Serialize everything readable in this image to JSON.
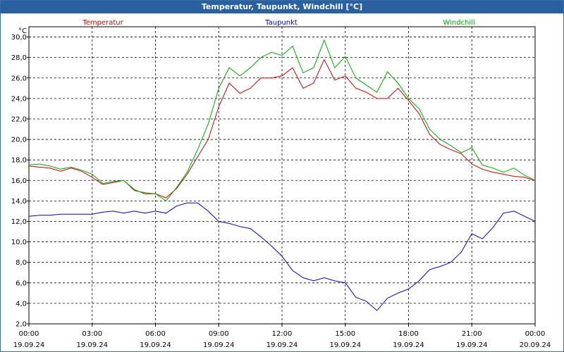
{
  "window": {
    "title": "Temperatur, Taupunkt, Windchill [°C]"
  },
  "chart_data": {
    "type": "line",
    "title": "Temperatur, Taupunkt, Windchill [°C]",
    "ylabel": "°C",
    "ylim": [
      2,
      31
    ],
    "xlim": [
      0,
      24
    ],
    "yticks": [
      2,
      4,
      6,
      8,
      10,
      12,
      14,
      16,
      18,
      20,
      22,
      24,
      26,
      28,
      30
    ],
    "ytick_labels": [
      "2,0",
      "4,0",
      "6,0",
      "8,0",
      "10,0",
      "12,0",
      "14,0",
      "16,0",
      "18,0",
      "20,0",
      "22,0",
      "24,0",
      "26,0",
      "28,0",
      "30,0"
    ],
    "xticks": [
      0,
      3,
      6,
      9,
      12,
      15,
      18,
      21,
      24
    ],
    "xtick_time": [
      "00:00",
      "03:00",
      "06:00",
      "09:00",
      "12:00",
      "15:00",
      "18:00",
      "21:00",
      "00:00"
    ],
    "xtick_date": [
      "19.09.24",
      "19.09.24",
      "19.09.24",
      "19.09.24",
      "19.09.24",
      "19.09.24",
      "19.09.24",
      "19.09.24",
      "20.09.24"
    ],
    "grid": true,
    "series": [
      {
        "name": "Temperatur",
        "color": "#cc0000",
        "x": [
          0,
          0.5,
          1,
          1.5,
          2,
          2.5,
          3,
          3.5,
          4,
          4.5,
          5,
          5.5,
          6,
          6.5,
          7,
          7.5,
          8,
          8.5,
          9,
          9.5,
          10,
          10.5,
          11,
          11.5,
          12,
          12.5,
          13,
          13.5,
          14,
          14.5,
          15,
          15.5,
          16,
          16.5,
          17,
          17.5,
          18,
          18.5,
          19,
          19.5,
          20,
          20.5,
          21,
          21.5,
          22,
          22.5,
          23,
          23.5,
          24
        ],
        "values": [
          17.4,
          17.3,
          17.2,
          16.9,
          17.2,
          16.9,
          16.3,
          15.6,
          15.8,
          16,
          15.1,
          14.7,
          14.7,
          14.3,
          15.2,
          16.6,
          18.3,
          20,
          23.2,
          25.5,
          24.5,
          25,
          26,
          26,
          26.2,
          27,
          25,
          25.5,
          27.8,
          25.8,
          26.2,
          25,
          24.6,
          24,
          24,
          25,
          23.8,
          22.5,
          20.5,
          19.5,
          19,
          18.6,
          17.6,
          17.1,
          16.8,
          16.6,
          16.4,
          16.3,
          16
        ]
      },
      {
        "name": "Taupunkt",
        "color": "#0000cc",
        "x": [
          0,
          0.5,
          1,
          1.5,
          2,
          2.5,
          3,
          3.5,
          4,
          4.5,
          5,
          5.5,
          6,
          6.5,
          7,
          7.5,
          8,
          8.5,
          9,
          9.5,
          10,
          10.5,
          11,
          11.5,
          12,
          12.5,
          13,
          13.5,
          14,
          14.5,
          15,
          15.5,
          16,
          16.5,
          17,
          17.5,
          18,
          18.5,
          19,
          19.5,
          20,
          20.5,
          21,
          21.5,
          22,
          22.5,
          23,
          23.5,
          24
        ],
        "values": [
          12.5,
          12.6,
          12.6,
          12.7,
          12.7,
          12.7,
          12.7,
          12.9,
          13,
          12.8,
          13,
          12.8,
          13,
          12.8,
          13.5,
          13.8,
          13.8,
          13,
          12,
          11.8,
          11.5,
          11.3,
          10.5,
          9.6,
          8.6,
          7.2,
          6.5,
          6.2,
          6.5,
          6.2,
          6,
          4.6,
          4.2,
          3.3,
          4.5,
          5,
          5.4,
          6.2,
          7.3,
          7.6,
          8,
          9,
          10.8,
          10.3,
          11.4,
          12.8,
          13,
          12.5,
          12
        ]
      },
      {
        "name": "Windchill",
        "color": "#00aa00",
        "x": [
          0,
          0.5,
          1,
          1.5,
          2,
          2.5,
          3,
          3.5,
          4,
          4.5,
          5,
          5.5,
          6,
          6.5,
          7,
          7.5,
          8,
          8.5,
          9,
          9.5,
          10,
          10.5,
          11,
          11.5,
          12,
          12.5,
          13,
          13.5,
          14,
          14.5,
          15,
          15.5,
          16,
          16.5,
          17,
          17.5,
          18,
          18.5,
          19,
          19.5,
          20,
          20.5,
          21,
          21.5,
          22,
          22.5,
          23,
          23.5,
          24
        ],
        "values": [
          17.5,
          17.6,
          17.4,
          17.1,
          17.3,
          17,
          16.6,
          15.7,
          15.9,
          16,
          15,
          14.8,
          14.7,
          14,
          15.3,
          16.8,
          19,
          21.5,
          25,
          27,
          26.2,
          27,
          28,
          28.5,
          28.2,
          29.1,
          26.5,
          27,
          29.7,
          27,
          28.1,
          26,
          25.3,
          24.6,
          26.6,
          25.5,
          24,
          23,
          21,
          20,
          19.4,
          18.7,
          19.2,
          17.5,
          17.2,
          16.8,
          17.2,
          16.5,
          16
        ]
      }
    ],
    "legend": {
      "placement": "top-row"
    }
  }
}
